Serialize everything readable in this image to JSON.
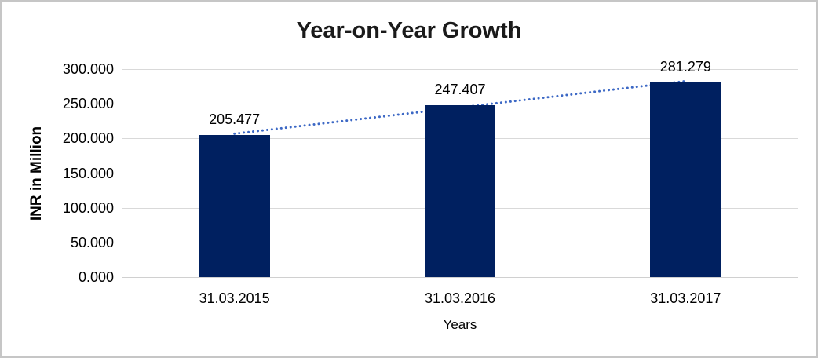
{
  "frame": {
    "background": "#ffffff",
    "border_color": "#c6c6c6"
  },
  "chart_data": {
    "type": "bar",
    "title": "Year-on-Year Growth",
    "xlabel": "Years",
    "ylabel": "INR in Million",
    "categories": [
      "31.03.2015",
      "31.03.2016",
      "31.03.2017"
    ],
    "values": [
      205.477,
      247.407,
      281.279
    ],
    "data_labels": [
      "205.477",
      "247.407",
      "281.279"
    ],
    "ylim": [
      0,
      300
    ],
    "ytick_values": [
      0,
      50,
      100,
      150,
      200,
      250,
      300
    ],
    "ytick_labels": [
      "0.000",
      "50.000",
      "100.000",
      "150.000",
      "200.000",
      "250.000",
      "300.000"
    ],
    "grid": true,
    "legend": "none",
    "bar_color": "#002060",
    "gridline_color": "#d9d9d9",
    "trendline": {
      "fit": "linear",
      "style": "dotted",
      "color": "#3c68c5"
    }
  }
}
